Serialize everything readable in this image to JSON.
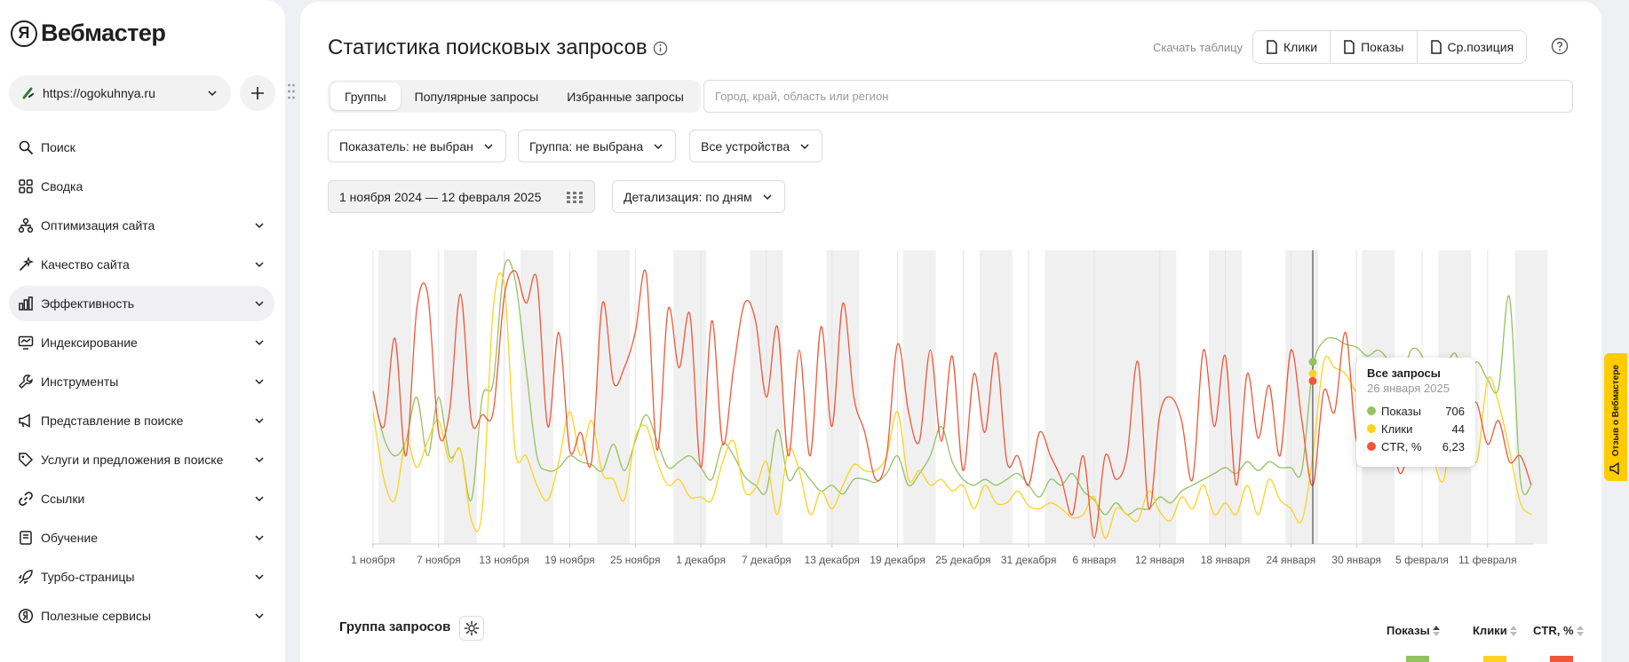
{
  "brand": {
    "logo_letter": "Я",
    "name": "Вебмастер"
  },
  "site": {
    "url": "https://ogokuhnya.ru"
  },
  "sidebar": {
    "items": [
      {
        "label": "Поиск",
        "icon": "search-icon",
        "has_chevron": false,
        "active": false
      },
      {
        "label": "Сводка",
        "icon": "grid-icon",
        "has_chevron": false,
        "active": false
      },
      {
        "label": "Оптимизация сайта",
        "icon": "hierarchy-icon",
        "has_chevron": true,
        "active": false
      },
      {
        "label": "Качество сайта",
        "icon": "sparkle-icon",
        "has_chevron": true,
        "active": false
      },
      {
        "label": "Эффективность",
        "icon": "bar-chart-icon",
        "has_chevron": true,
        "active": true
      },
      {
        "label": "Индексирование",
        "icon": "monitor-icon",
        "has_chevron": true,
        "active": false
      },
      {
        "label": "Инструменты",
        "icon": "wrench-icon",
        "has_chevron": true,
        "active": false
      },
      {
        "label": "Представление в поиске",
        "icon": "megaphone-icon",
        "has_chevron": true,
        "active": false
      },
      {
        "label": "Услуги и предложения в поиске",
        "icon": "tag-icon",
        "has_chevron": true,
        "active": false
      },
      {
        "label": "Ссылки",
        "icon": "link-icon",
        "has_chevron": true,
        "active": false
      },
      {
        "label": "Обучение",
        "icon": "book-icon",
        "has_chevron": true,
        "active": false
      },
      {
        "label": "Турбо-страницы",
        "icon": "rocket-icon",
        "has_chevron": true,
        "active": false
      },
      {
        "label": "Полезные сервисы",
        "icon": "yandex-circle-icon",
        "has_chevron": true,
        "active": false
      }
    ]
  },
  "header": {
    "title": "Статистика поисковых запросов",
    "download_label": "Скачать таблицу",
    "download_buttons": [
      "Клики",
      "Показы",
      "Ср.позиция"
    ]
  },
  "tabs": [
    {
      "label": "Группы",
      "active": true
    },
    {
      "label": "Популярные запросы",
      "active": false
    },
    {
      "label": "Избранные запросы",
      "active": false
    }
  ],
  "region": {
    "placeholder": "Город, край, область или регион",
    "value": ""
  },
  "filters": {
    "indicator": "Показатель: не выбран",
    "group": "Группа: не выбрана",
    "devices": "Все устройства",
    "date_range": "1 ноября 2024 — 12 февраля 2025",
    "detail": "Детализация: по дням"
  },
  "chart_data": {
    "type": "line",
    "x_start": "2024-11-01",
    "x_end": "2025-02-12",
    "xlabel": "",
    "ylabel": "",
    "grid": true,
    "tick_labels": [
      "1 ноября",
      "7 ноября",
      "13 ноября",
      "19 ноября",
      "25 ноября",
      "1 декабря",
      "7 декабря",
      "13 декабря",
      "19 декабря",
      "25 декабря",
      "31 декабря",
      "6 января",
      "12 января",
      "18 января",
      "24 января",
      "30 января",
      "5 февраля",
      "11 февраля"
    ],
    "weekend_bands": [
      [
        1,
        3
      ],
      [
        7,
        9
      ],
      [
        14,
        16
      ],
      [
        21,
        23
      ],
      [
        28,
        30
      ],
      [
        35,
        37
      ],
      [
        42,
        44
      ],
      [
        49,
        51
      ],
      [
        56,
        58
      ],
      [
        62,
        73
      ],
      [
        77,
        79
      ],
      [
        84,
        86
      ],
      [
        91,
        93
      ],
      [
        98,
        100
      ],
      [
        105,
        107
      ]
    ],
    "hover_index": 86,
    "series": [
      {
        "name": "Показы",
        "color": "#93c260",
        "values": [
          0.52,
          0.36,
          0.3,
          0.35,
          0.5,
          0.3,
          0.5,
          0.3,
          0.32,
          0.15,
          0.5,
          0.55,
          0.94,
          0.9,
          0.6,
          0.3,
          0.25,
          0.26,
          0.3,
          0.28,
          0.27,
          0.25,
          0.34,
          0.25,
          0.35,
          0.44,
          0.35,
          0.26,
          0.28,
          0.3,
          0.26,
          0.22,
          0.34,
          0.3,
          0.23,
          0.2,
          0.18,
          0.39,
          0.22,
          0.26,
          0.22,
          0.18,
          0.2,
          0.17,
          0.22,
          0.22,
          0.21,
          0.24,
          0.3,
          0.2,
          0.24,
          0.3,
          0.4,
          0.28,
          0.22,
          0.2,
          0.22,
          0.2,
          0.22,
          0.24,
          0.2,
          0.16,
          0.22,
          0.2,
          0.24,
          0.18,
          0.15,
          0.1,
          0.14,
          0.1,
          0.12,
          0.12,
          0.16,
          0.14,
          0.18,
          0.2,
          0.22,
          0.24,
          0.26,
          0.24,
          0.28,
          0.25,
          0.28,
          0.26,
          0.26,
          0.25,
          0.6,
          0.69,
          0.7,
          0.68,
          0.67,
          0.64,
          0.66,
          0.62,
          0.55,
          0.66,
          0.64,
          0.52,
          0.58,
          0.65,
          0.55,
          0.62,
          0.56,
          0.53,
          0.84,
          0.22,
          0.2
        ]
      },
      {
        "name": "Клики",
        "color": "#ffd21f",
        "values": [
          0.45,
          0.22,
          0.15,
          0.35,
          0.26,
          0.35,
          0.42,
          0.28,
          0.32,
          0.08,
          0.12,
          0.8,
          0.88,
          0.32,
          0.3,
          0.2,
          0.15,
          0.28,
          0.45,
          0.3,
          0.42,
          0.24,
          0.22,
          0.15,
          0.36,
          0.4,
          0.28,
          0.2,
          0.22,
          0.16,
          0.16,
          0.15,
          0.28,
          0.35,
          0.18,
          0.19,
          0.28,
          0.1,
          0.32,
          0.25,
          0.1,
          0.18,
          0.12,
          0.2,
          0.27,
          0.25,
          0.25,
          0.3,
          0.45,
          0.22,
          0.25,
          0.2,
          0.22,
          0.18,
          0.2,
          0.12,
          0.2,
          0.14,
          0.14,
          0.18,
          0.13,
          0.12,
          0.14,
          0.12,
          0.09,
          0.1,
          0.16,
          0.02,
          0.12,
          0.1,
          0.08,
          0.18,
          0.11,
          0.08,
          0.16,
          0.12,
          0.2,
          0.1,
          0.14,
          0.1,
          0.2,
          0.1,
          0.22,
          0.15,
          0.12,
          0.08,
          0.3,
          0.62,
          0.6,
          0.58,
          0.52,
          0.56,
          0.5,
          0.55,
          0.42,
          0.56,
          0.5,
          0.3,
          0.22,
          0.5,
          0.42,
          0.28,
          0.56,
          0.48,
          0.32,
          0.14,
          0.1
        ]
      },
      {
        "name": "CTR, %",
        "color": "#f0573a",
        "values": [
          0.52,
          0.4,
          0.7,
          0.3,
          0.8,
          0.85,
          0.38,
          0.45,
          0.85,
          0.42,
          0.44,
          0.45,
          0.84,
          0.93,
          0.82,
          0.9,
          0.4,
          0.72,
          0.32,
          0.38,
          0.28,
          0.82,
          0.55,
          0.6,
          0.72,
          0.92,
          0.32,
          0.8,
          0.6,
          0.78,
          0.26,
          0.76,
          0.34,
          0.6,
          0.82,
          0.76,
          0.5,
          0.74,
          0.3,
          0.66,
          0.3,
          0.74,
          0.4,
          0.82,
          0.5,
          0.38,
          0.22,
          0.3,
          0.68,
          0.45,
          0.35,
          0.66,
          0.35,
          0.64,
          0.25,
          0.58,
          0.38,
          0.65,
          0.28,
          0.3,
          0.2,
          0.38,
          0.3,
          0.22,
          0.1,
          0.3,
          0.02,
          0.3,
          0.22,
          0.3,
          0.62,
          0.12,
          0.44,
          0.5,
          0.42,
          0.22,
          0.66,
          0.4,
          0.64,
          0.2,
          0.58,
          0.36,
          0.54,
          0.3,
          0.66,
          0.42,
          0.2,
          0.52,
          0.45,
          0.72,
          0.35,
          0.42,
          0.3,
          0.38,
          0.24,
          0.35,
          0.44,
          0.3,
          0.38,
          0.42,
          0.44,
          0.48,
          0.34,
          0.42,
          0.28,
          0.3,
          0.2
        ]
      }
    ]
  },
  "tooltip": {
    "title": "Все запросы",
    "date": "26 января 2025",
    "rows": [
      {
        "label": "Показы",
        "value": "706",
        "color": "#93c260"
      },
      {
        "label": "Клики",
        "value": "44",
        "color": "#ffd21f"
      },
      {
        "label": "CTR, %",
        "value": "6,23",
        "color": "#f0573a"
      }
    ]
  },
  "table": {
    "group_label": "Группа запросов",
    "columns": [
      {
        "label": "Показы",
        "color": "#93c260"
      },
      {
        "label": "Клики",
        "color": "#ffd21f"
      },
      {
        "label": "CTR, %",
        "color": "#f0573a"
      }
    ]
  },
  "feedback": {
    "label": "Отзыв о Вебмастере"
  }
}
